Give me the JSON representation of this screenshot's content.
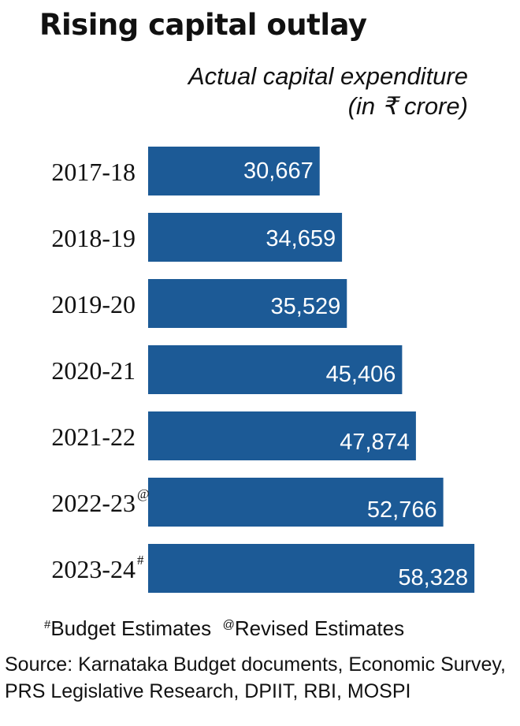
{
  "title": "Rising capital outlay",
  "subtitle_line1": "Actual capital expenditure",
  "subtitle_line2": "(in ₹ crore)",
  "colors": {
    "bar": "#1c5a96",
    "bar_label": "#ffffff",
    "text": "#111111"
  },
  "chart_data": {
    "type": "bar",
    "orientation": "horizontal",
    "title": "Rising capital outlay",
    "subtitle": "Actual capital expenditure (in ₹ crore)",
    "categories": [
      "2017-18",
      "2018-19",
      "2019-20",
      "2020-21",
      "2021-22",
      "2022-23",
      "2023-24"
    ],
    "category_marks": [
      "",
      "",
      "",
      "",
      "",
      "@",
      "#"
    ],
    "values": [
      30667,
      34659,
      35529,
      45406,
      47874,
      52766,
      58328
    ],
    "value_labels": [
      "30,667",
      "34,659",
      "35,529",
      "45,406",
      "47,874",
      "52,766",
      "58,328"
    ],
    "grid": false,
    "legend": "none"
  },
  "footnote": {
    "budget_mark": "#",
    "budget_label": "Budget Estimates",
    "revised_mark": "@",
    "revised_label": "Revised Estimates"
  },
  "source": {
    "line1": "Source: Karnataka Budget documents, Economic Survey,",
    "line2": "PRS Legislative Research, DPIIT, RBI, MOSPI"
  }
}
